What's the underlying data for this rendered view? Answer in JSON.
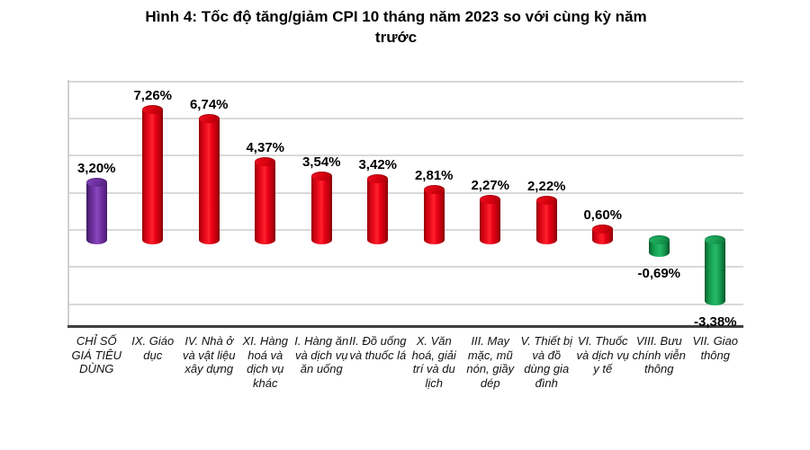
{
  "chart_data": {
    "type": "bar",
    "variant": "3d-cylinder",
    "title": "Hình 4: Tốc độ tăng/giảm CPI 10 tháng năm 2023 so với cùng kỳ năm trước",
    "categories": [
      "CHỈ SỐ GIÁ TIÊU DÙNG",
      "IX. Giáo dục",
      "IV. Nhà ở và vật liệu xây dựng",
      "XI. Hàng hoá và dịch vụ khác",
      "I. Hàng ăn và dịch vụ ăn uống",
      "II. Đồ uống và thuốc lá",
      "X. Văn hoá, giải trí và du lịch",
      "III. May mặc, mũ nón, giầy dép",
      "V. Thiết bị và đồ dùng gia đình",
      "VI. Thuốc và dịch vụ y tế",
      "VIII. Bưu chính viễn thông",
      "VII. Giao thông"
    ],
    "values": [
      3.2,
      7.26,
      6.74,
      4.37,
      3.54,
      3.42,
      2.81,
      2.27,
      2.22,
      0.6,
      -0.69,
      -3.38
    ],
    "value_labels": [
      "3,20%",
      "7,26%",
      "6,74%",
      "4,37%",
      "3,54%",
      "3,42%",
      "2,81%",
      "2,27%",
      "2,22%",
      "0,60%",
      "-0,69%",
      "-3,38%"
    ],
    "color_roles": [
      "cpi",
      "up",
      "up",
      "up",
      "up",
      "up",
      "up",
      "up",
      "up",
      "up",
      "down",
      "down"
    ],
    "xlabel": "",
    "ylabel": "",
    "ylim": [
      -4,
      8
    ],
    "grid_step_pct": 2,
    "grid": true,
    "legend": "none",
    "value_format": "comma-decimal percent"
  },
  "colors": {
    "cpi_bar": "#7030a0",
    "increase_bar": "#e2000f",
    "decrease_bar": "#17a050",
    "gridline": "#d9d9d9",
    "axis_line": "#3f3f3f",
    "title_text": "#000000",
    "value_label_text": "#000000",
    "category_label_text": "#111111",
    "background": "#ffffff"
  }
}
